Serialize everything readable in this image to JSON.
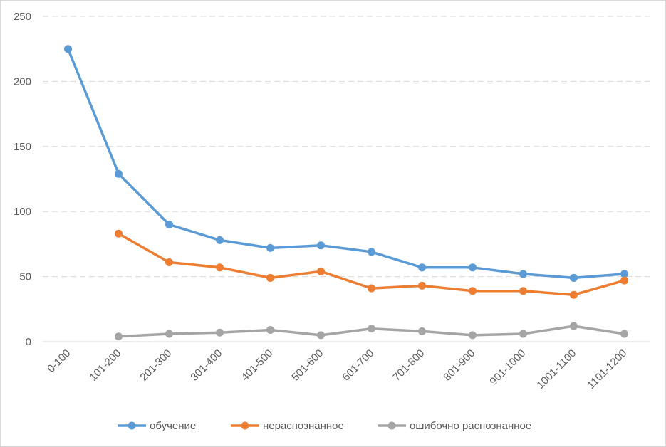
{
  "chart_data": {
    "type": "line",
    "title": "",
    "xlabel": "",
    "ylabel": "",
    "ylim": [
      0,
      250
    ],
    "yticks": [
      0,
      50,
      100,
      150,
      200,
      250
    ],
    "grid": true,
    "legend_position": "bottom",
    "categories": [
      "0-100",
      "101-200",
      "201-300",
      "301-400",
      "401-500",
      "501-600",
      "601-700",
      "701-800",
      "801-900",
      "901-1000",
      "1001-1100",
      "1101-1200"
    ],
    "series": [
      {
        "name": "обучение",
        "color": "#5b9bd5",
        "values": [
          225,
          129,
          90,
          78,
          72,
          74,
          69,
          57,
          57,
          52,
          49,
          52
        ]
      },
      {
        "name": "нераспознанное",
        "color": "#ed7d31",
        "values": [
          null,
          83,
          61,
          57,
          49,
          54,
          41,
          43,
          39,
          39,
          36,
          47
        ]
      },
      {
        "name": "ошибочно распознанное",
        "color": "#a5a5a5",
        "values": [
          null,
          4,
          6,
          7,
          9,
          5,
          10,
          8,
          5,
          6,
          12,
          6
        ]
      }
    ]
  }
}
